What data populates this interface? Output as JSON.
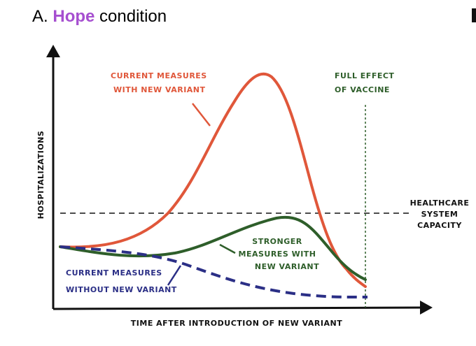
{
  "title": {
    "prefix": "A.",
    "highlight": "Hope",
    "suffix": "condition"
  },
  "y_axis_label": "HOSPITALIZATIONS",
  "x_axis_label": "TIME AFTER INTRODUCTION OF NEW VARIANT",
  "annotations": [
    {
      "lines": [
        "CURRENT MEASURES",
        "WITH NEW VARIANT"
      ]
    },
    {
      "lines": [
        "FULL EFFECT",
        "OF VACCINE"
      ]
    },
    {
      "lines": [
        "HEALTHCARE",
        "SYSTEM",
        "CAPACITY"
      ]
    },
    {
      "lines": [
        "STRONGER",
        "MEASURES WITH",
        "NEW VARIANT"
      ]
    },
    {
      "lines": [
        "CURRENT MEASURES",
        "WITHOUT NEW VARIANT"
      ]
    }
  ]
}
